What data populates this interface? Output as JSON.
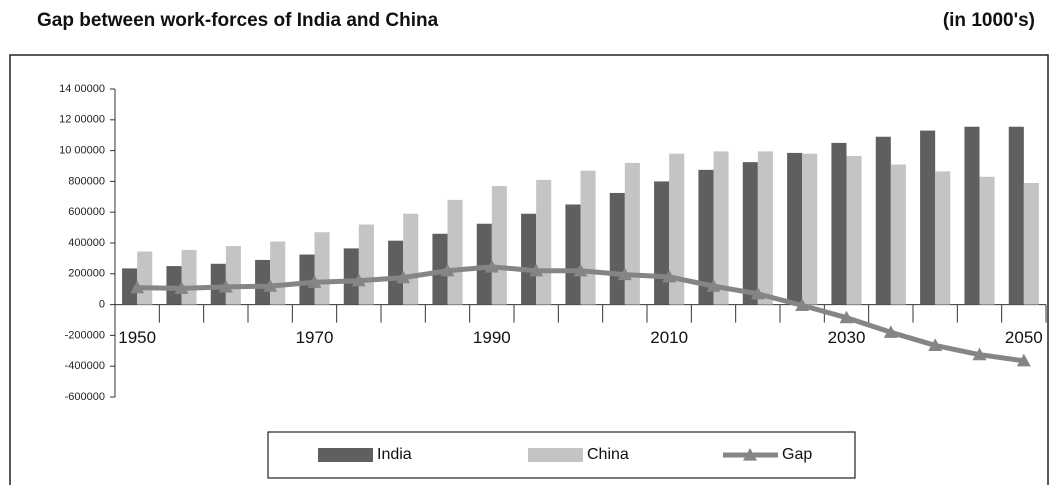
{
  "chart_data": {
    "type": "bar",
    "title": "Gap between work-forces of India and China",
    "subtitle": "(in 1000's)",
    "categories": [
      "1950",
      null,
      null,
      null,
      "1970",
      null,
      null,
      null,
      "1990",
      null,
      null,
      null,
      "2010",
      null,
      null,
      null,
      "2030",
      null,
      null,
      null,
      "2050"
    ],
    "series": [
      {
        "name": "India",
        "color": "#5f5f5f",
        "type": "bar",
        "values": [
          235000,
          250000,
          265000,
          290000,
          325000,
          365000,
          415000,
          460000,
          525000,
          590000,
          650000,
          725000,
          800000,
          875000,
          925000,
          985000,
          1050000,
          1090000,
          1130000,
          1155000,
          1155000
        ]
      },
      {
        "name": "China",
        "color": "#c4c4c4",
        "type": "bar",
        "values": [
          345000,
          355000,
          380000,
          410000,
          470000,
          520000,
          590000,
          680000,
          770000,
          810000,
          870000,
          920000,
          980000,
          995000,
          995000,
          980000,
          965000,
          910000,
          865000,
          830000,
          790000
        ]
      },
      {
        "name": "Gap",
        "color": "#858585",
        "type": "line",
        "values": [
          110000,
          105000,
          115000,
          120000,
          145000,
          155000,
          175000,
          220000,
          245000,
          220000,
          220000,
          195000,
          180000,
          120000,
          70000,
          -5000,
          -85000,
          -180000,
          -265000,
          -325000,
          -365000
        ]
      }
    ],
    "ylim": [
      -600000,
      1400000
    ],
    "yticks": [
      -600000,
      -400000,
      -200000,
      0,
      {
        "value": 200000,
        "label": "200000"
      },
      {
        "value": 400000,
        "label": "400000"
      },
      {
        "value": 600000,
        "label": "600000"
      },
      {
        "value": 800000,
        "label": "800000"
      },
      {
        "value": 1000000,
        "label": "10 00000"
      },
      {
        "value": 1200000,
        "label": "12 00000"
      },
      {
        "value": 1400000,
        "label": "14 00000"
      }
    ],
    "legend": "bottom"
  }
}
